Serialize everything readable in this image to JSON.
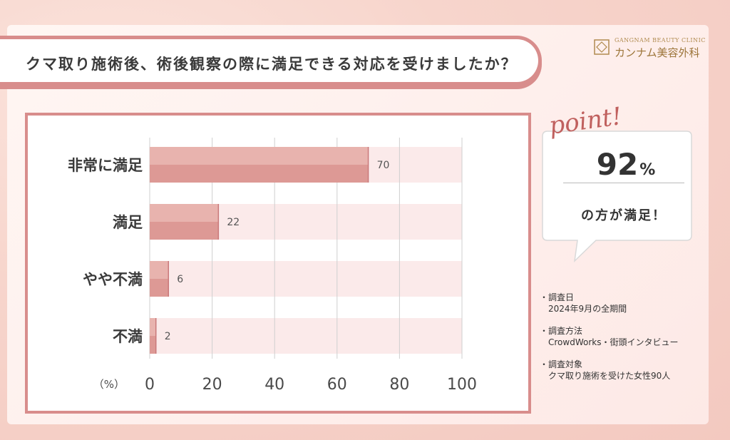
{
  "header": {
    "title": "クマ取り施術後、術後観察の際に満足できる対応を受けましたか？"
  },
  "logo": {
    "en": "GANGNAM BEAUTY CLINIC",
    "ja": "カンナム美容外科"
  },
  "callout": {
    "point_word": "point!",
    "percent_value": "92",
    "percent_unit": "%",
    "text": "の方が満足！"
  },
  "notes": [
    {
      "bullet": "・",
      "label": "調査日",
      "value": "2024年9月の全期間"
    },
    {
      "bullet": "・",
      "label": "調査方法",
      "value": "CrowdWorks・街頭インタビュー"
    },
    {
      "bullet": "・",
      "label": "調査対象",
      "value": "クマ取り施術を受けた女性90人"
    }
  ],
  "colors": {
    "accent": "#d88d8c",
    "bar": "#dd9995",
    "bar_light": "#e8b3ae",
    "track": "#fbeaea"
  },
  "chart_data": {
    "type": "bar",
    "orientation": "horizontal",
    "categories": [
      "非常に満足",
      "満足",
      "やや不満",
      "不満"
    ],
    "values": [
      70,
      22,
      6,
      2
    ],
    "xlim": [
      0,
      100
    ],
    "xticks": [
      0,
      20,
      40,
      60,
      80,
      100
    ],
    "x_unit_label": "（%）",
    "grid": true,
    "data_labels": [
      "70",
      "22",
      "6",
      "2"
    ]
  }
}
